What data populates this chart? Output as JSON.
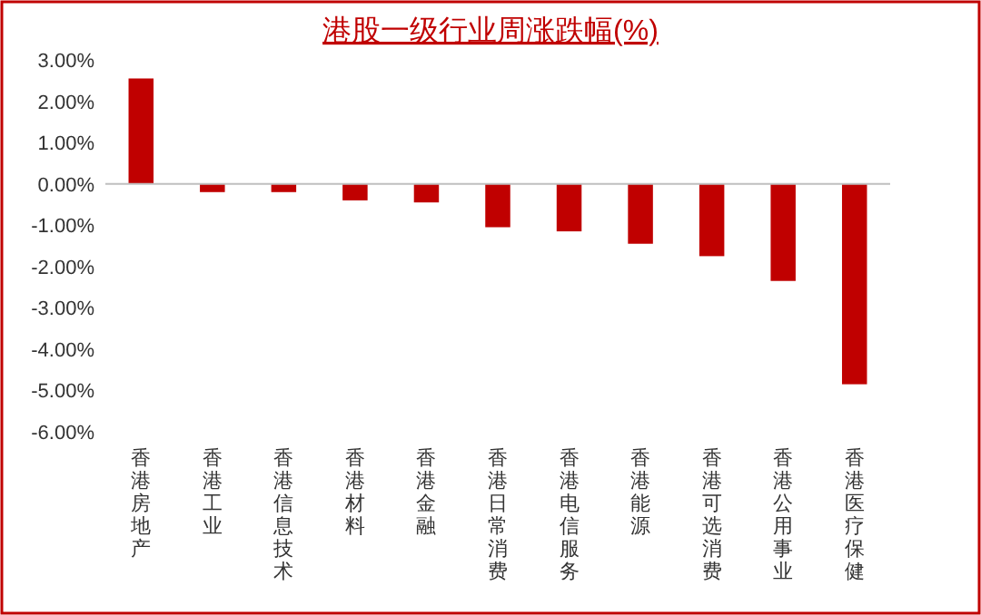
{
  "chart_data": {
    "type": "bar",
    "title": "港股一级行业周涨跌幅(%)",
    "categories": [
      "香港房地产",
      "香港工业",
      "香港信息技术",
      "香港材料",
      "香港金融",
      "香港日常消费",
      "香港电信服务",
      "香港能源",
      "香港可选消费",
      "香港公用事业",
      "香港医疗保健"
    ],
    "series": [
      {
        "color": "#c00000",
        "values": [
          2.55,
          -0.2,
          -0.2,
          -0.4,
          -0.45,
          -1.05,
          -1.15,
          -1.45,
          -1.75,
          -2.35,
          -4.85
        ]
      }
    ],
    "ylim": [
      -6,
      3
    ],
    "yticks": [
      {
        "value": 3,
        "label": "3.00%"
      },
      {
        "value": 2,
        "label": "2.00%"
      },
      {
        "value": 1,
        "label": "1.00%"
      },
      {
        "value": 0,
        "label": "0.00%"
      },
      {
        "value": -1,
        "label": "-1.00%"
      },
      {
        "value": -2,
        "label": "-2.00%"
      },
      {
        "value": -3,
        "label": "-3.00%"
      },
      {
        "value": -4,
        "label": "-4.00%"
      },
      {
        "value": -5,
        "label": "-5.00%"
      },
      {
        "value": -6,
        "label": "-6.00%"
      }
    ]
  }
}
